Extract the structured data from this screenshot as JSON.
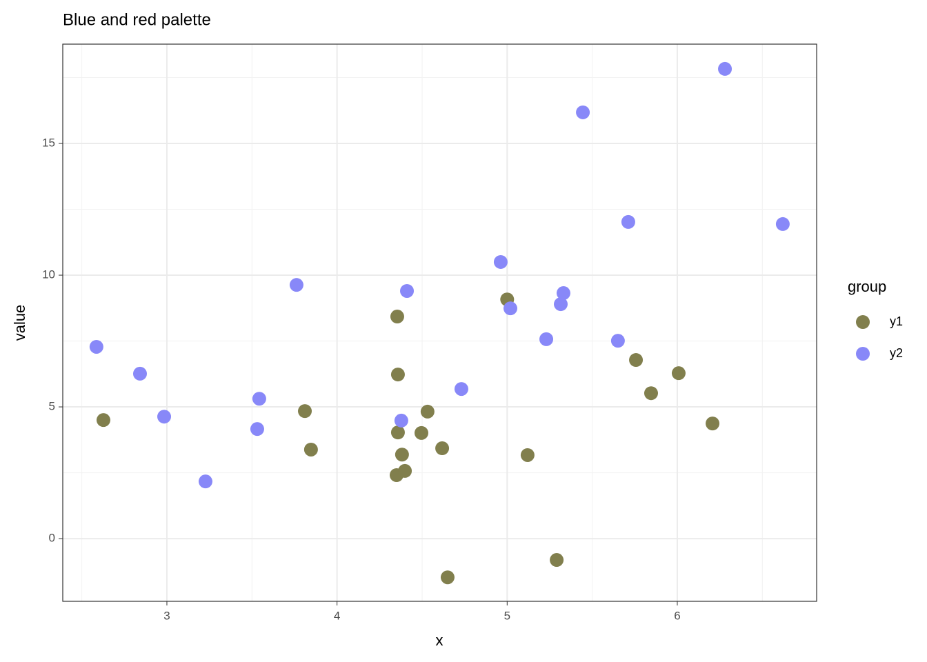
{
  "chart_data": {
    "type": "scatter",
    "title": "Blue and red palette",
    "x_label": "x",
    "y_label": "value",
    "xlim": [
      2.388,
      6.819
    ],
    "ylim": [
      -2.38,
      18.77
    ],
    "xticks": [
      3,
      4,
      5,
      6
    ],
    "yticks": [
      0,
      5,
      10,
      15
    ],
    "x_minor_ticks": [
      2.5,
      3.5,
      4.5,
      5.5,
      6.5
    ],
    "y_minor_ticks": [
      2.5,
      7.5,
      12.5,
      17.5
    ],
    "grid": true,
    "legend_title": "group",
    "legend_position": "right",
    "series": [
      {
        "name": "y1",
        "color": "#817f4d",
        "x": [
          2.627,
          3.811,
          3.847,
          4.354,
          4.358,
          4.358,
          4.382,
          4.35,
          4.399,
          4.496,
          4.532,
          4.618,
          4.65,
          5.0,
          5.12,
          5.291,
          5.757,
          5.846,
          6.008,
          6.207
        ],
        "values": [
          4.5,
          4.84,
          3.38,
          8.43,
          6.23,
          4.03,
          3.19,
          2.41,
          2.57,
          4.01,
          4.82,
          3.43,
          -1.47,
          9.08,
          3.17,
          -0.81,
          6.78,
          5.52,
          6.28,
          4.37
        ]
      },
      {
        "name": "y2",
        "color": "#8888f8",
        "x": [
          2.586,
          2.842,
          2.984,
          3.227,
          3.531,
          3.543,
          3.762,
          4.378,
          4.411,
          4.731,
          4.962,
          5.019,
          5.23,
          5.315,
          5.331,
          5.445,
          5.651,
          5.712,
          6.28,
          6.62
        ],
        "values": [
          7.28,
          6.26,
          4.63,
          2.17,
          4.16,
          5.31,
          9.63,
          4.48,
          9.4,
          5.68,
          10.5,
          8.74,
          7.57,
          8.9,
          9.32,
          16.18,
          7.51,
          12.02,
          17.83,
          11.94
        ]
      }
    ]
  }
}
